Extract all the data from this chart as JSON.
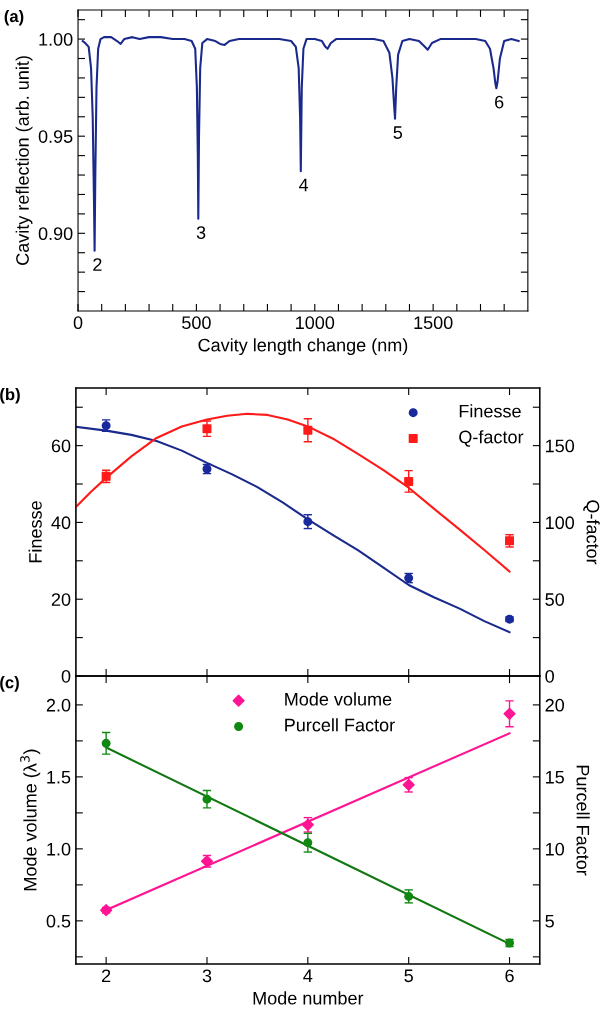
{
  "chart_data": [
    {
      "type": "line",
      "title": "(a)",
      "xlabel": "Cavity length change (nm)",
      "ylabel": "Cavity reflection (arb. unit)",
      "xlim": [
        0,
        1900
      ],
      "xticks": [
        0,
        {
          "value": 100,
          "label": null
        },
        {
          "value": 200,
          "label": null
        },
        {
          "value": 300,
          "label": null
        },
        {
          "value": 400,
          "label": null
        },
        500,
        {
          "value": 600,
          "label": null
        },
        {
          "value": 700,
          "label": null
        },
        {
          "value": 800,
          "label": null
        },
        {
          "value": 900,
          "label": null
        },
        1000,
        {
          "value": 1100,
          "label": null
        },
        {
          "value": 1200,
          "label": null
        },
        {
          "value": 1300,
          "label": null
        },
        {
          "value": 1400,
          "label": null
        },
        1500,
        {
          "value": 1600,
          "label": null
        },
        {
          "value": 1700,
          "label": null
        },
        {
          "value": 1800,
          "label": null
        }
      ],
      "ylim": [
        0.86,
        1.015
      ],
      "yticks": [
        {
          "value": 0.87,
          "label": null
        },
        {
          "value": 0.88,
          "label": null
        },
        {
          "value": 0.89,
          "label": null
        },
        {
          "value": 0.9,
          "label": "0.90"
        },
        {
          "value": 0.91,
          "label": null
        },
        {
          "value": 0.92,
          "label": null
        },
        {
          "value": 0.93,
          "label": null
        },
        {
          "value": 0.94,
          "label": null
        },
        {
          "value": 0.95,
          "label": "0.95"
        },
        {
          "value": 0.96,
          "label": null
        },
        {
          "value": 0.97,
          "label": null
        },
        {
          "value": 0.98,
          "label": null
        },
        {
          "value": 0.99,
          "label": null
        },
        {
          "value": 1.0,
          "label": "1.00"
        },
        {
          "value": 1.01,
          "label": null
        }
      ],
      "grid": false,
      "legend": false,
      "series": [
        {
          "color": "#1a2a8c",
          "marker": "none",
          "x": [
            20,
            30,
            45,
            55,
            62,
            67,
            70,
            73,
            78,
            85,
            95,
            110,
            140,
            165,
            180,
            195,
            230,
            260,
            300,
            350,
            400,
            450,
            480,
            495,
            502,
            506,
            508,
            511,
            516,
            525,
            545,
            580,
            600,
            619,
            640,
            680,
            750,
            800,
            850,
            900,
            920,
            932,
            938,
            941,
            945,
            952,
            965,
            1000,
            1030,
            1045,
            1054,
            1068,
            1090,
            1150,
            1200,
            1250,
            1290,
            1315,
            1328,
            1335,
            1339,
            1344,
            1352,
            1370,
            1400,
            1440,
            1465,
            1477,
            1495,
            1530,
            1600,
            1680,
            1720,
            1740,
            1755,
            1763,
            1767,
            1772,
            1782,
            1800,
            1830,
            1861
          ],
          "values": [
            0.999,
            0.998,
            0.996,
            0.985,
            0.96,
            0.92,
            0.891,
            0.93,
            0.975,
            0.995,
            1.0,
            1.001,
            1.001,
            0.999,
            0.9975,
            1.0,
            1.001,
            1.0,
            1.001,
            1.001,
            1.0,
            1.0,
            0.999,
            0.995,
            0.975,
            0.94,
            0.9075,
            0.95,
            0.985,
            0.998,
            1.0,
            0.999,
            0.9975,
            0.997,
            0.999,
            1.0,
            1.0,
            1.0,
            1.0,
            0.999,
            0.996,
            0.985,
            0.96,
            0.932,
            0.975,
            0.995,
            1.0,
            1.0,
            0.999,
            0.996,
            0.995,
            0.998,
            1.0,
            1.0,
            1.0,
            1.0,
            0.999,
            0.993,
            0.98,
            0.966,
            0.959,
            0.975,
            0.992,
            0.999,
            1.0,
            0.999,
            0.996,
            0.9945,
            0.998,
            1.0,
            1.0,
            1.0,
            0.999,
            0.995,
            0.985,
            0.977,
            0.9747,
            0.978,
            0.99,
            0.999,
            1.0,
            0.999
          ]
        }
      ],
      "annotations": [
        {
          "text": "2",
          "x": 70,
          "y": 0.891
        },
        {
          "text": "3",
          "x": 508,
          "y": 0.9075
        },
        {
          "text": "4",
          "x": 941,
          "y": 0.932
        },
        {
          "text": "5",
          "x": 1339,
          "y": 0.959
        },
        {
          "text": "6",
          "x": 1767,
          "y": 0.9747
        }
      ]
    },
    {
      "type": "scatter",
      "title": "(b)",
      "ylabel": "Finesse",
      "y2label": "Q-factor",
      "tick_labels": "y",
      "xlim": [
        1.7,
        6.3
      ],
      "xticks": [
        2,
        3,
        4,
        5,
        6
      ],
      "ylim": [
        0,
        75
      ],
      "yticks": [
        0,
        {
          "value": 10,
          "label": null
        },
        20,
        {
          "value": 30,
          "label": null
        },
        40,
        {
          "value": 50,
          "label": null
        },
        60,
        {
          "value": 70,
          "label": null
        }
      ],
      "y2lim": [
        0,
        187.5
      ],
      "y2ticks": [
        0,
        {
          "value": 25,
          "label": null
        },
        50,
        {
          "value": 75,
          "label": null
        },
        100,
        {
          "value": 125,
          "label": null
        },
        150,
        {
          "value": 175,
          "label": null
        }
      ],
      "grid": false,
      "legend": "top right",
      "series": [
        {
          "name": "Finesse",
          "color": "#1a2a9c",
          "marker": "circle",
          "x": [
            2,
            3,
            4,
            5,
            6
          ],
          "values": [
            65.2,
            53.9,
            40.2,
            25.5,
            14.8
          ],
          "errors": [
            1.5,
            1.2,
            1.8,
            1.2,
            0.6
          ]
        },
        {
          "name": "Q-factor",
          "color": "#ff1a1a",
          "marker": "square",
          "axis": "y2",
          "x": [
            2,
            3,
            4,
            5,
            6
          ],
          "values": [
            130,
            161,
            160,
            126.7,
            88
          ],
          "errors": [
            4,
            5,
            7.5,
            7,
            4
          ]
        },
        {
          "type": "line",
          "color": "#1a2a8c",
          "marker": "none",
          "x": [
            1.7,
            2,
            2.25,
            2.5,
            2.75,
            3,
            3.25,
            3.5,
            3.75,
            4,
            4.25,
            4.5,
            4.75,
            5,
            5.25,
            5.5,
            5.75,
            6
          ],
          "values": [
            64.9,
            63.9,
            62.8,
            61.2,
            58.7,
            55.5,
            52.5,
            49.2,
            45.2,
            40.8,
            36.7,
            32.7,
            28.2,
            23.7,
            20.5,
            17.6,
            14.3,
            11.4
          ]
        },
        {
          "type": "line",
          "color": "#ff1a1a",
          "marker": "none",
          "axis": "y2",
          "x": [
            1.7,
            1.85,
            2,
            2.25,
            2.5,
            2.75,
            3,
            3.2,
            3.4,
            3.6,
            3.8,
            4,
            4.25,
            4.5,
            4.75,
            5,
            5.25,
            5.5,
            5.75,
            6
          ],
          "values": [
            110,
            120,
            129,
            143,
            155,
            162.5,
            167,
            169.5,
            170.7,
            170,
            167,
            162.5,
            154.5,
            144.5,
            134,
            122.6,
            109,
            95.6,
            82,
            68
          ]
        }
      ]
    },
    {
      "type": "scatter",
      "title": "(c)",
      "xlabel": "Mode number",
      "ylabel": "Mode volume (λ$^{3}$)",
      "y2label": "Purcell Factor",
      "xlim": [
        1.7,
        6.3
      ],
      "xticks": [
        2,
        3,
        4,
        5,
        6
      ],
      "ylim": [
        0.2,
        2.2
      ],
      "yticks": [
        {
          "value": 0.25,
          "label": null
        },
        {
          "value": 0.5,
          "label": "0.5"
        },
        {
          "value": 0.75,
          "label": null
        },
        {
          "value": 1.0,
          "label": "1.0"
        },
        {
          "value": 1.25,
          "label": null
        },
        {
          "value": 1.5,
          "label": "1.5"
        },
        {
          "value": 1.75,
          "label": null
        },
        {
          "value": 2.0,
          "label": "2.0"
        }
      ],
      "y2lim": [
        2,
        22
      ],
      "y2ticks": [
        {
          "value": 2.5,
          "label": null
        },
        5,
        {
          "value": 7.5,
          "label": null
        },
        10,
        {
          "value": 12.5,
          "label": null
        },
        15,
        {
          "value": 17.5,
          "label": null
        },
        20
      ],
      "grid": false,
      "legend": "top",
      "series": [
        {
          "name": "Mode volume",
          "color": "#ff1493",
          "marker": "diamond",
          "x": [
            2,
            3,
            4,
            5,
            6
          ],
          "values": [
            0.574,
            0.914,
            1.167,
            1.445,
            1.938
          ],
          "errors": [
            0.02,
            0.04,
            0.05,
            0.05,
            0.09
          ]
        },
        {
          "name": "Purcell Factor",
          "color": "#118811",
          "marker": "circle",
          "axis": "y2",
          "x": [
            2,
            3,
            4,
            5,
            6
          ],
          "values": [
            17.33,
            13.45,
            10.43,
            6.7,
            3.46
          ],
          "errors": [
            0.75,
            0.6,
            0.65,
            0.45,
            0.25
          ]
        },
        {
          "type": "line",
          "color": "#ff1493",
          "marker": "none",
          "x": [
            2,
            6
          ],
          "values": [
            0.575,
            1.803
          ]
        },
        {
          "type": "line",
          "color": "#117711",
          "marker": "none",
          "axis": "y2",
          "x": [
            2,
            6
          ],
          "values": [
            17.04,
            3.4
          ]
        }
      ]
    }
  ]
}
